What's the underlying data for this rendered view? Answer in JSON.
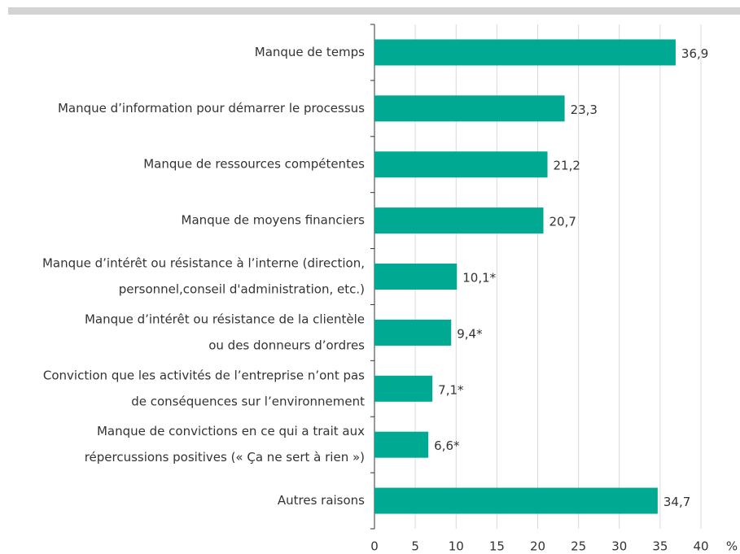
{
  "chart_data": {
    "type": "barh",
    "categories": [
      [
        "Manque de temps"
      ],
      [
        "Manque d’information pour démarrer le processus"
      ],
      [
        "Manque de ressources compétentes"
      ],
      [
        "Manque de moyens financiers"
      ],
      [
        "Manque d’intérêt ou résistance à l’interne (direction,",
        "personnel,conseil d'administration, etc.)"
      ],
      [
        "Manque d’intérêt ou résistance de la clientèle",
        "ou des donneurs d’ordres"
      ],
      [
        "Conviction que les activités de l’entreprise n’ont pas",
        "de conséquences sur l’environnement"
      ],
      [
        "Manque de convictions en ce qui a trait aux",
        "répercussions positives (« Ça ne sert à rien »)"
      ],
      [
        "Autres raisons"
      ]
    ],
    "values": [
      36.9,
      23.3,
      21.2,
      20.7,
      10.1,
      9.4,
      7.1,
      6.6,
      34.7
    ],
    "value_labels": [
      "36,9",
      "23,3",
      "21,2",
      "20,7",
      "10,1*",
      "9,4*",
      "7,1*",
      "6,6*",
      "34,7"
    ],
    "color": "#00a992",
    "xlim": [
      0,
      40
    ],
    "xticks": [
      0,
      5,
      10,
      15,
      20,
      25,
      30,
      35,
      40
    ],
    "x_label": "%",
    "grid": true
  }
}
